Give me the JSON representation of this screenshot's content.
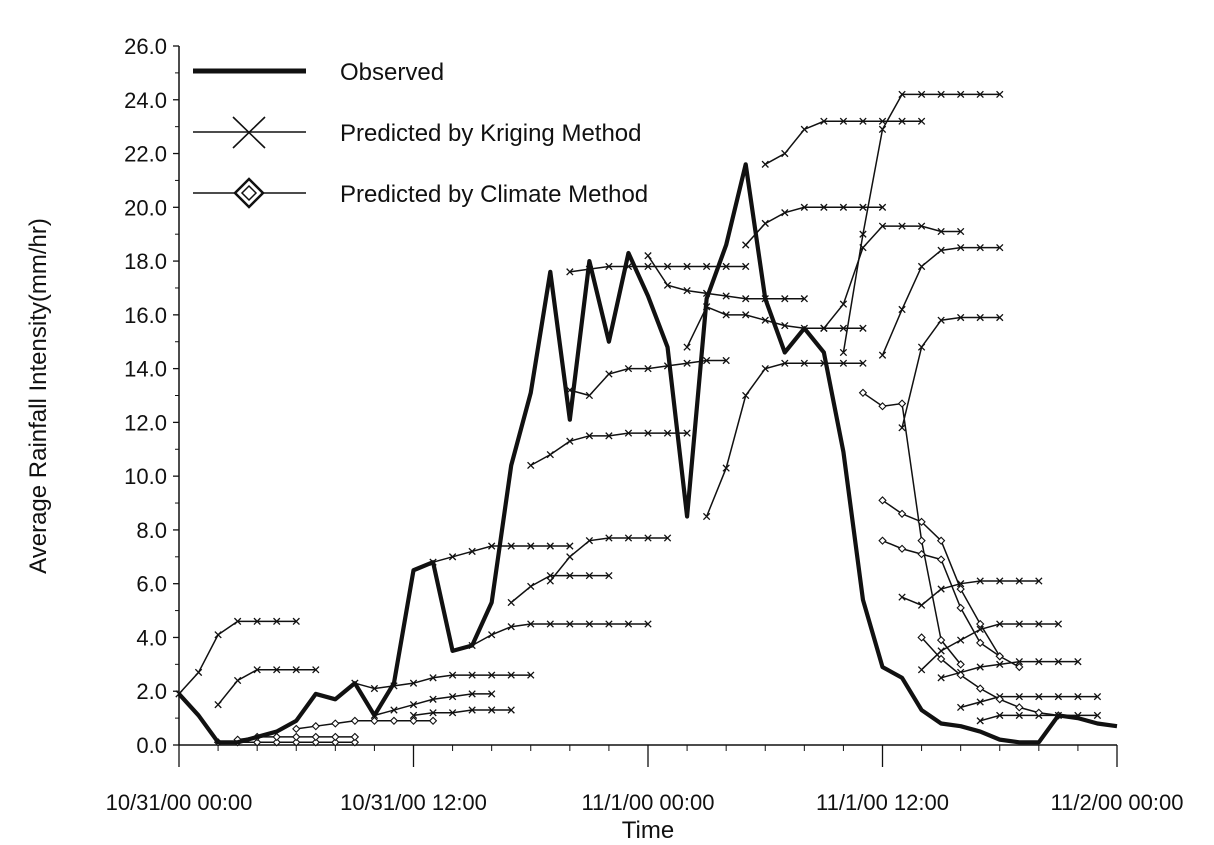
{
  "chart_data": {
    "type": "line",
    "xlabel": "Time",
    "ylabel": "Average Rainfall Intensity(mm/hr)",
    "ylim": [
      0,
      26
    ],
    "y_ticks": [
      0,
      2,
      4,
      6,
      8,
      10,
      12,
      14,
      16,
      18,
      20,
      22,
      24,
      26
    ],
    "y_tick_labels": [
      "0.0",
      "2.0",
      "4.0",
      "6.0",
      "8.0",
      "10.0",
      "12.0",
      "14.0",
      "16.0",
      "18.0",
      "20.0",
      "22.0",
      "24.0",
      "26.0"
    ],
    "x_range_hours": [
      0,
      48
    ],
    "x_ticks_hours": [
      0,
      12,
      24,
      36,
      48
    ],
    "x_tick_labels": [
      "10/31/00 00:00",
      "10/31/00 12:00",
      "11/1/00 00:00",
      "11/1/00 12:00",
      "11/2/00 00:00"
    ],
    "x_minor_tick_step_hours": 2,
    "legend": {
      "position": "top-left",
      "entries": [
        {
          "label": "Observed",
          "marker": "none",
          "style": "thick"
        },
        {
          "label": "Predicted by Kriging Method",
          "marker": "x",
          "style": "thin"
        },
        {
          "label": "Predicted by Climate Method",
          "marker": "diamond",
          "style": "thin"
        }
      ]
    },
    "observed": {
      "x": [
        0,
        1,
        2,
        3,
        4,
        5,
        6,
        7,
        8,
        9,
        10,
        11,
        12,
        13,
        14,
        15,
        16,
        17,
        18,
        19,
        20,
        21,
        22,
        23,
        24,
        25,
        26,
        27,
        28,
        29,
        30,
        31,
        32,
        33,
        34,
        35,
        36,
        37,
        38,
        39,
        40,
        41,
        42,
        43,
        44,
        45,
        46,
        47,
        48
      ],
      "y": [
        1.9,
        1.1,
        0.1,
        0.1,
        0.3,
        0.5,
        0.9,
        1.9,
        1.7,
        2.3,
        1.1,
        2.3,
        6.5,
        6.8,
        3.5,
        3.7,
        5.3,
        10.4,
        13.1,
        17.6,
        12.1,
        18.0,
        15.0,
        18.3,
        16.7,
        14.8,
        8.5,
        16.6,
        18.6,
        21.6,
        16.6,
        14.6,
        15.5,
        14.6,
        10.9,
        5.4,
        2.9,
        2.5,
        1.3,
        0.8,
        0.7,
        0.5,
        0.2,
        0.1,
        0.1,
        1.1,
        1.0,
        0.8,
        0.7
      ]
    },
    "kriging_series": [
      {
        "x": [
          0,
          1,
          2,
          3,
          4,
          5,
          6
        ],
        "y": [
          1.9,
          2.7,
          4.1,
          4.6,
          4.6,
          4.6,
          4.6
        ]
      },
      {
        "x": [
          2,
          3,
          4,
          5,
          6,
          7
        ],
        "y": [
          1.5,
          2.4,
          2.8,
          2.8,
          2.8,
          2.8
        ]
      },
      {
        "x": [
          9,
          10,
          11,
          12,
          13,
          14,
          15,
          16,
          17,
          18
        ],
        "y": [
          2.3,
          2.1,
          2.2,
          2.3,
          2.5,
          2.6,
          2.6,
          2.6,
          2.6,
          2.6
        ]
      },
      {
        "x": [
          10,
          11,
          12,
          13,
          14,
          15,
          16
        ],
        "y": [
          1.1,
          1.3,
          1.5,
          1.7,
          1.8,
          1.9,
          1.9
        ]
      },
      {
        "x": [
          12,
          13,
          14,
          15,
          16,
          17
        ],
        "y": [
          1.1,
          1.2,
          1.2,
          1.3,
          1.3,
          1.3
        ]
      },
      {
        "x": [
          13,
          14,
          15,
          16,
          17,
          18,
          19,
          20
        ],
        "y": [
          6.8,
          7.0,
          7.2,
          7.4,
          7.4,
          7.4,
          7.4,
          7.4
        ]
      },
      {
        "x": [
          15,
          16,
          17,
          18,
          19,
          20,
          21,
          22,
          23,
          24
        ],
        "y": [
          3.7,
          4.1,
          4.4,
          4.5,
          4.5,
          4.5,
          4.5,
          4.5,
          4.5,
          4.5
        ]
      },
      {
        "x": [
          17,
          18,
          19,
          20,
          21,
          22
        ],
        "y": [
          5.3,
          5.9,
          6.3,
          6.3,
          6.3,
          6.3
        ]
      },
      {
        "x": [
          19,
          20,
          21,
          22,
          23,
          24,
          25
        ],
        "y": [
          6.1,
          7.0,
          7.6,
          7.7,
          7.7,
          7.7,
          7.7
        ]
      },
      {
        "x": [
          18,
          19,
          20,
          21,
          22,
          23,
          24,
          25,
          26
        ],
        "y": [
          10.4,
          10.8,
          11.3,
          11.5,
          11.5,
          11.6,
          11.6,
          11.6,
          11.6
        ]
      },
      {
        "x": [
          20,
          21,
          22,
          23,
          24,
          25,
          26,
          27,
          28
        ],
        "y": [
          13.2,
          13.0,
          13.8,
          14.0,
          14.0,
          14.1,
          14.2,
          14.3,
          14.3
        ]
      },
      {
        "x": [
          20,
          21,
          22,
          23,
          24,
          25,
          26,
          27,
          28,
          29
        ],
        "y": [
          17.6,
          17.7,
          17.8,
          17.8,
          17.8,
          17.8,
          17.8,
          17.8,
          17.8,
          17.8
        ]
      },
      {
        "x": [
          24,
          25,
          26,
          27,
          28,
          29,
          30,
          31,
          32
        ],
        "y": [
          18.2,
          17.1,
          16.9,
          16.8,
          16.7,
          16.6,
          16.6,
          16.6,
          16.6
        ]
      },
      {
        "x": [
          26,
          27,
          28,
          29,
          30,
          31,
          32,
          33,
          34,
          35
        ],
        "y": [
          14.8,
          16.3,
          16.0,
          16.0,
          15.8,
          15.6,
          15.5,
          15.5,
          15.5,
          15.5
        ]
      },
      {
        "x": [
          27,
          28,
          29,
          30,
          31,
          32,
          33,
          34,
          35
        ],
        "y": [
          8.5,
          10.3,
          13.0,
          14.0,
          14.2,
          14.2,
          14.2,
          14.2,
          14.2
        ]
      },
      {
        "x": [
          29,
          30,
          31,
          32,
          33,
          34,
          35,
          36
        ],
        "y": [
          18.6,
          19.4,
          19.8,
          20.0,
          20.0,
          20.0,
          20.0,
          20.0
        ]
      },
      {
        "x": [
          30,
          31,
          32,
          33,
          34,
          35,
          36,
          37,
          38
        ],
        "y": [
          21.6,
          22.0,
          22.9,
          23.2,
          23.2,
          23.2,
          23.2,
          23.2,
          23.2
        ]
      },
      {
        "x": [
          33,
          34,
          35,
          36,
          37,
          38,
          39,
          40
        ],
        "y": [
          15.5,
          16.4,
          18.5,
          19.3,
          19.3,
          19.3,
          19.1,
          19.1
        ]
      },
      {
        "x": [
          34,
          35,
          36,
          37,
          38,
          39,
          40,
          41,
          42
        ],
        "y": [
          14.6,
          19.0,
          22.9,
          24.2,
          24.2,
          24.2,
          24.2,
          24.2,
          24.2
        ]
      },
      {
        "x": [
          36,
          37,
          38,
          39,
          40,
          41,
          42
        ],
        "y": [
          14.5,
          16.2,
          17.8,
          18.4,
          18.5,
          18.5,
          18.5
        ]
      },
      {
        "x": [
          37,
          38,
          39,
          40,
          41,
          42
        ],
        "y": [
          11.8,
          14.8,
          15.8,
          15.9,
          15.9,
          15.9
        ]
      },
      {
        "x": [
          37,
          38,
          39,
          40,
          41,
          42,
          43,
          44
        ],
        "y": [
          5.5,
          5.2,
          5.8,
          6.0,
          6.1,
          6.1,
          6.1,
          6.1
        ]
      },
      {
        "x": [
          38,
          39,
          40,
          41,
          42,
          43,
          44,
          45
        ],
        "y": [
          2.8,
          3.5,
          3.9,
          4.3,
          4.5,
          4.5,
          4.5,
          4.5
        ]
      },
      {
        "x": [
          39,
          40,
          41,
          42,
          43,
          44,
          45,
          46
        ],
        "y": [
          2.5,
          2.7,
          2.9,
          3.0,
          3.1,
          3.1,
          3.1,
          3.1
        ]
      },
      {
        "x": [
          40,
          41,
          42,
          43,
          44,
          45,
          46,
          47
        ],
        "y": [
          1.4,
          1.6,
          1.8,
          1.8,
          1.8,
          1.8,
          1.8,
          1.8
        ]
      },
      {
        "x": [
          41,
          42,
          43,
          44,
          45,
          46,
          47
        ],
        "y": [
          0.9,
          1.1,
          1.1,
          1.1,
          1.1,
          1.1,
          1.1
        ]
      }
    ],
    "climate_series": [
      {
        "x": [
          2,
          3,
          4,
          5,
          6,
          7,
          8,
          9
        ],
        "y": [
          0.1,
          0.1,
          0.1,
          0.1,
          0.1,
          0.1,
          0.1,
          0.1
        ]
      },
      {
        "x": [
          3,
          4,
          5,
          6,
          7,
          8,
          9
        ],
        "y": [
          0.2,
          0.3,
          0.3,
          0.3,
          0.3,
          0.3,
          0.3
        ]
      },
      {
        "x": [
          6,
          7,
          8,
          9,
          10,
          11,
          12,
          13
        ],
        "y": [
          0.6,
          0.7,
          0.8,
          0.9,
          0.9,
          0.9,
          0.9,
          0.9
        ]
      },
      {
        "x": [
          35,
          36,
          37,
          38,
          39,
          40
        ],
        "y": [
          13.1,
          12.6,
          12.7,
          7.6,
          3.9,
          3.0
        ]
      },
      {
        "x": [
          36,
          37,
          38,
          39,
          40,
          41,
          42
        ],
        "y": [
          9.1,
          8.6,
          8.3,
          7.6,
          5.8,
          4.5,
          3.3
        ]
      },
      {
        "x": [
          36,
          37,
          38,
          39,
          40,
          41,
          42,
          43
        ],
        "y": [
          7.6,
          7.3,
          7.1,
          6.9,
          5.1,
          3.8,
          3.3,
          2.9
        ]
      },
      {
        "x": [
          38,
          39,
          40,
          41,
          42,
          43,
          44,
          45
        ],
        "y": [
          4.0,
          3.2,
          2.6,
          2.1,
          1.7,
          1.4,
          1.2,
          1.1
        ]
      }
    ]
  }
}
